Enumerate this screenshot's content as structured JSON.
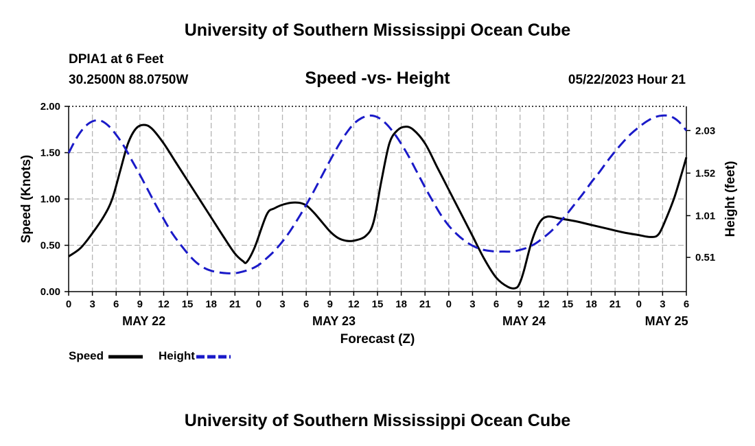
{
  "header": {
    "title": "University of Southern Mississippi Ocean Cube",
    "station": "DPIA1 at 6 Feet",
    "coords": "30.2500N  88.0750W",
    "chart_title": "Speed -vs- Height",
    "datetime": "05/22/2023 Hour 21"
  },
  "footer": {
    "title": "University of Southern Mississippi Ocean Cube"
  },
  "legend": {
    "speed_label": "Speed",
    "height_label": "Height"
  },
  "colors": {
    "speed": "#000000",
    "height": "#1a1ac8",
    "grid": "#b4b4b4"
  },
  "chart_data": {
    "type": "line",
    "title": "Speed -vs- Height",
    "xlabel": "Forecast (Z)",
    "ylabel": "Speed (Knots)",
    "y2label": "Height (feet)",
    "xlim": [
      0,
      78
    ],
    "x_ticks": [
      0,
      3,
      6,
      9,
      12,
      15,
      18,
      21,
      24,
      27,
      30,
      33,
      36,
      39,
      42,
      45,
      48,
      51,
      54,
      57,
      60,
      63,
      66,
      69,
      72,
      75,
      78
    ],
    "x_tick_labels": [
      "0",
      "3",
      "6",
      "9",
      "12",
      "15",
      "18",
      "21",
      "0",
      "3",
      "6",
      "9",
      "12",
      "15",
      "18",
      "21",
      "0",
      "3",
      "6",
      "9",
      "12",
      "15",
      "18",
      "21",
      "0",
      "3",
      "6"
    ],
    "date_labels": [
      {
        "x": 9.5,
        "label": "MAY 22"
      },
      {
        "x": 33.5,
        "label": "MAY 23"
      },
      {
        "x": 57.5,
        "label": "MAY 24"
      },
      {
        "x": 75.5,
        "label": "MAY 25"
      }
    ],
    "ylim": [
      0,
      2
    ],
    "y_ticks": [
      0,
      0.5,
      1,
      1.5,
      2
    ],
    "y_tick_labels": [
      "0.00",
      "0.50",
      "1.00",
      "1.50",
      "2.00"
    ],
    "y2lim": [
      0.1,
      2.32
    ],
    "y2_ticks": [
      0.51,
      1.01,
      1.52,
      2.03
    ],
    "y2_tick_labels": [
      "0.51",
      "1.01",
      "1.52",
      "2.03"
    ],
    "grid": true,
    "series": [
      {
        "name": "Speed",
        "axis": "left",
        "style": "solid",
        "x": [
          0,
          1.5,
          3,
          4.5,
          5.5,
          6.5,
          7.5,
          8.5,
          9.5,
          10.5,
          12,
          13.5,
          15,
          16.5,
          18,
          19.5,
          21,
          22,
          22.5,
          23.5,
          25,
          26,
          27.5,
          29,
          30,
          31,
          32,
          33,
          34,
          35,
          36,
          37.5,
          38.5,
          39.5,
          40.5,
          41.5,
          42.5,
          43.5,
          45,
          46.5,
          48,
          49.5,
          51,
          52.5,
          54,
          55.5,
          56.5,
          57,
          57.5,
          58.5,
          59.5,
          60.5,
          62,
          64,
          66,
          68,
          70,
          72,
          73.5,
          74.5,
          75.5,
          76.5,
          77.5,
          78
        ],
        "values": [
          0.38,
          0.47,
          0.63,
          0.82,
          1.0,
          1.3,
          1.6,
          1.76,
          1.8,
          1.76,
          1.6,
          1.4,
          1.2,
          1.0,
          0.8,
          0.6,
          0.41,
          0.33,
          0.32,
          0.48,
          0.83,
          0.9,
          0.95,
          0.96,
          0.93,
          0.85,
          0.75,
          0.65,
          0.58,
          0.55,
          0.55,
          0.6,
          0.75,
          1.2,
          1.6,
          1.74,
          1.78,
          1.75,
          1.6,
          1.35,
          1.1,
          0.85,
          0.6,
          0.35,
          0.15,
          0.05,
          0.04,
          0.1,
          0.23,
          0.55,
          0.75,
          0.81,
          0.79,
          0.76,
          0.72,
          0.68,
          0.64,
          0.61,
          0.59,
          0.62,
          0.8,
          1.02,
          1.3,
          1.45
        ]
      },
      {
        "name": "Height",
        "axis": "right",
        "style": "dashed",
        "x": [
          0,
          1,
          2,
          3,
          4,
          5,
          6,
          7,
          8,
          9,
          10,
          11,
          12,
          13,
          14,
          15,
          16,
          17,
          18,
          19,
          20,
          21,
          22,
          23,
          24,
          25,
          26,
          27,
          28,
          29,
          30,
          31,
          32,
          33,
          34,
          35,
          36,
          37,
          38,
          39,
          40,
          41,
          42,
          43,
          44,
          45,
          46,
          47,
          48,
          49,
          50,
          51,
          52,
          53,
          54,
          55,
          56,
          57,
          58,
          59,
          60,
          61,
          62,
          63,
          64,
          65,
          66,
          67,
          68,
          69,
          70,
          71,
          72,
          73,
          74,
          75,
          76,
          77,
          78
        ],
        "values": [
          1.76,
          1.94,
          2.07,
          2.14,
          2.15,
          2.09,
          1.98,
          1.84,
          1.67,
          1.5,
          1.32,
          1.14,
          0.97,
          0.81,
          0.68,
          0.56,
          0.46,
          0.39,
          0.35,
          0.33,
          0.32,
          0.32,
          0.34,
          0.37,
          0.42,
          0.5,
          0.59,
          0.7,
          0.83,
          0.98,
          1.14,
          1.31,
          1.49,
          1.67,
          1.84,
          1.99,
          2.11,
          2.18,
          2.21,
          2.19,
          2.12,
          2.01,
          1.87,
          1.71,
          1.53,
          1.35,
          1.18,
          1.02,
          0.89,
          0.79,
          0.71,
          0.65,
          0.61,
          0.59,
          0.58,
          0.58,
          0.58,
          0.6,
          0.63,
          0.68,
          0.75,
          0.83,
          0.93,
          1.04,
          1.16,
          1.28,
          1.41,
          1.53,
          1.66,
          1.78,
          1.89,
          1.99,
          2.07,
          2.14,
          2.19,
          2.21,
          2.2,
          2.14,
          2.03
        ]
      }
    ]
  }
}
